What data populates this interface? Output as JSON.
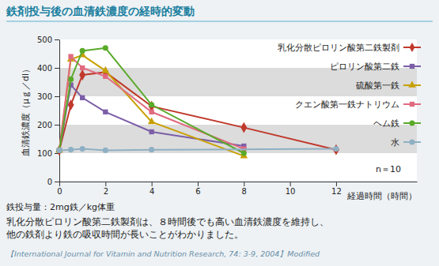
{
  "chart_data": {
    "type": "line",
    "title": "鉄剤投与後の血清鉄濃度の経時的変動",
    "xlabel": "経過時間（時間）",
    "ylabel": "血清鉄濃度（μｇ／dl）",
    "xlim": [
      0,
      15.5
    ],
    "xticks": [
      0,
      2,
      4,
      6,
      8,
      10,
      12
    ],
    "ylim": [
      0,
      500
    ],
    "yticks": [
      0,
      100,
      200,
      300,
      400,
      500
    ],
    "grid": true,
    "legend": "upper right",
    "annotations": [
      "n＝10"
    ],
    "notes": [
      "鉄投与量：2mg鉄／kg体重",
      "乳化分散ピロリン酸第二鉄製剤は、８時間後でも高い血清鉄濃度を維持し、",
      "他の鉄剤より鉄の吸収時間が長いことがわかりました。"
    ],
    "source": "【International Journal for Vitamin and Nutrition Research, 74: 3-9, 2004】Modified",
    "series": [
      {
        "name": "乳化分散ピロリン酸第二鉄製剤",
        "color": "#c0392b",
        "marker": "diamond",
        "x": [
          0,
          0.5,
          1,
          2,
          4,
          8,
          12
        ],
        "values": [
          110,
          270,
          375,
          385,
          265,
          190,
          112
        ]
      },
      {
        "name": "ピロリン酸第二鉄",
        "color": "#7b5ea7",
        "marker": "square",
        "x": [
          0,
          0.5,
          1,
          2,
          4,
          8
        ],
        "values": [
          110,
          340,
          295,
          245,
          175,
          125
        ]
      },
      {
        "name": "硫酸第一鉄",
        "color": "#c8a000",
        "marker": "triangle",
        "x": [
          0,
          0.5,
          1,
          2,
          4,
          8
        ],
        "values": [
          110,
          430,
          445,
          390,
          210,
          90
        ]
      },
      {
        "name": "クエン酸第一鉄ナトリウム",
        "color": "#e06a80",
        "marker": "square",
        "x": [
          0,
          0.5,
          1,
          2,
          4,
          8
        ],
        "values": [
          110,
          440,
          400,
          370,
          245,
          115
        ]
      },
      {
        "name": "ヘム鉄",
        "color": "#5aaa2a",
        "marker": "circle",
        "x": [
          0,
          0.5,
          1,
          2,
          4,
          8
        ],
        "values": [
          110,
          360,
          460,
          470,
          270,
          100
        ]
      },
      {
        "name": "水",
        "color": "#8fb0c4",
        "marker": "circle",
        "x": [
          0,
          0.5,
          1,
          2,
          4,
          12
        ],
        "values": [
          110,
          112,
          115,
          110,
          112,
          115
        ]
      }
    ]
  }
}
